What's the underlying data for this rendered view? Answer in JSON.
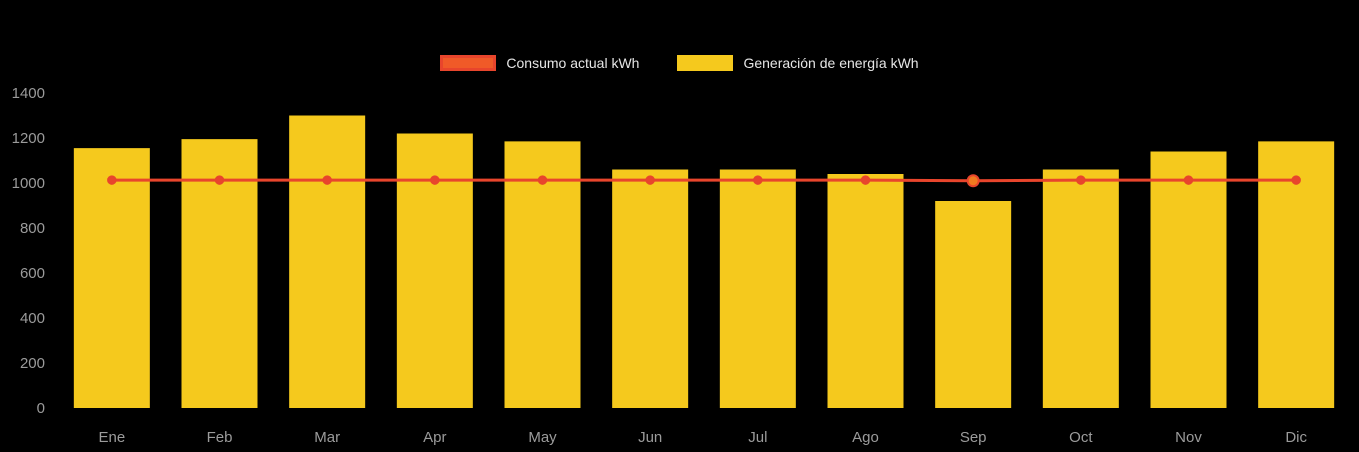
{
  "legend": {
    "line_label": "Consumo actual kWh",
    "bar_label": "Generación de energía kWh"
  },
  "colors": {
    "bar": "#f5c91d",
    "line": "#e8452c",
    "line_fill": "#f05a28",
    "highlight_point": "#f07a1f",
    "axis_text": "#9b9b9b",
    "background": "#000000"
  },
  "chart_data": {
    "type": "bar",
    "title": "",
    "xlabel": "",
    "ylabel": "",
    "categories": [
      "Ene",
      "Feb",
      "Mar",
      "Apr",
      "May",
      "Jun",
      "Jul",
      "Ago",
      "Sep",
      "Oct",
      "Nov",
      "Dic"
    ],
    "series": [
      {
        "name": "Generación de energía kWh",
        "type": "bar",
        "color": "#f5c91d",
        "values": [
          1155,
          1195,
          1300,
          1220,
          1185,
          1060,
          1060,
          1040,
          920,
          1060,
          1140,
          1185
        ]
      },
      {
        "name": "Consumo actual kWh",
        "type": "line",
        "color": "#e8452c",
        "values": [
          1013,
          1013,
          1013,
          1013,
          1013,
          1013,
          1013,
          1013,
          1010,
          1013,
          1013,
          1013
        ],
        "highlight_index": 8
      }
    ],
    "ylim": [
      0,
      1400
    ],
    "yticks": [
      0,
      200,
      400,
      600,
      800,
      1000,
      1200,
      1400
    ],
    "grid": false,
    "legend_position": "top"
  }
}
